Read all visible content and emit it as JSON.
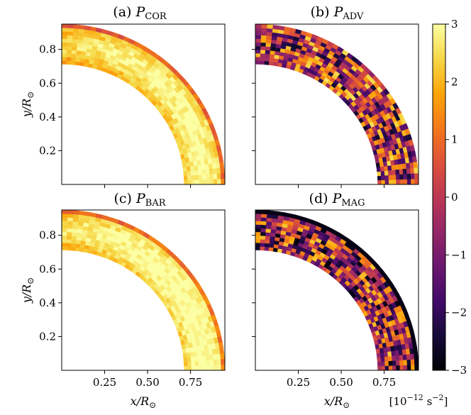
{
  "chart_data": {
    "type": "heatmap",
    "description_free": true,
    "panels": [
      {
        "id": "a",
        "label_prefix": "(a)",
        "symbol": "P",
        "subscript": "COR",
        "pattern": "smooth_high",
        "base_value": 2.1
      },
      {
        "id": "b",
        "label_prefix": "(b)",
        "symbol": "P",
        "subscript": "ADV",
        "pattern": "noisy",
        "base_value": 0.0
      },
      {
        "id": "c",
        "label_prefix": "(c)",
        "symbol": "P",
        "subscript": "BAR",
        "pattern": "smooth_high",
        "base_value": 2.3
      },
      {
        "id": "d",
        "label_prefix": "(d)",
        "symbol": "P",
        "subscript": "MAG",
        "pattern": "noisy",
        "base_value": -0.3
      }
    ],
    "x_range": [
      0,
      0.95
    ],
    "y_range": [
      0,
      0.95
    ],
    "shell_inner_radius": 0.713,
    "shell_outer_radius": 0.95,
    "x_ticks": [
      "0.25",
      "0.50",
      "0.75"
    ],
    "x_tick_values": [
      0.25,
      0.5,
      0.75
    ],
    "y_ticks": [
      "0.2",
      "0.4",
      "0.6",
      "0.8"
    ],
    "y_tick_values": [
      0.2,
      0.4,
      0.6,
      0.8
    ],
    "xlabel_main": "x/R",
    "ylabel_main": "y/R",
    "sun_symbol": "⊙",
    "colorbar": {
      "colormap": "inferno",
      "vmin": -3,
      "vmax": 3,
      "ticks": [
        "−3",
        "−2",
        "−1",
        "0",
        "1",
        "2",
        "3"
      ],
      "tick_values": [
        -3,
        -2,
        -1,
        0,
        1,
        2,
        3
      ],
      "units_text": "[10",
      "units_exp": "−12",
      "units_rest": " s",
      "units_exp2": "−2",
      "units_close": "]"
    }
  }
}
